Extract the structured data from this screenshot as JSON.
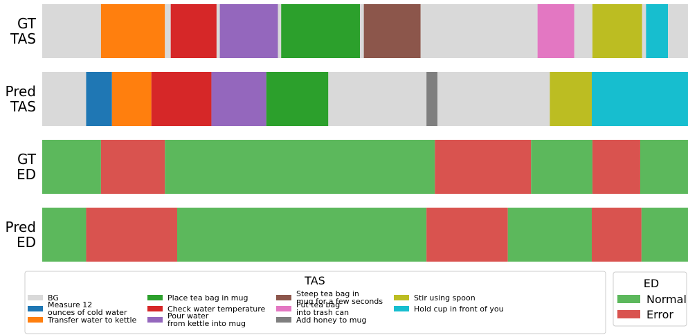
{
  "chart_data": {
    "type": "segmented-timeline",
    "x_range": [
      0,
      100
    ],
    "tas_legend": {
      "title": "TAS",
      "items": [
        {
          "key": "bg",
          "label": [
            "BG"
          ],
          "color": "#d9d9d9"
        },
        {
          "key": "measure",
          "label": [
            "Measure 12",
            "ounces of cold water"
          ],
          "color": "#1f77b4"
        },
        {
          "key": "transfer",
          "label": [
            "Transfer water to kettle"
          ],
          "color": "#ff7f0e"
        },
        {
          "key": "place",
          "label": [
            "Place tea bag in mug"
          ],
          "color": "#2ca02c"
        },
        {
          "key": "check",
          "label": [
            "Check water temperature"
          ],
          "color": "#d62728"
        },
        {
          "key": "pour",
          "label": [
            "Pour water",
            "from kettle into mug"
          ],
          "color": "#9467bd"
        },
        {
          "key": "steep",
          "label": [
            "Steep tea bag in",
            "mug for a few seconds"
          ],
          "color": "#8c564b"
        },
        {
          "key": "trash",
          "label": [
            "Put tea bag",
            "into trash can"
          ],
          "color": "#e377c2"
        },
        {
          "key": "honey",
          "label": [
            "Add honey to mug"
          ],
          "color": "#7f7f7f"
        },
        {
          "key": "stir",
          "label": [
            "Stir using spoon"
          ],
          "color": "#bcbd22"
        },
        {
          "key": "hold",
          "label": [
            "Hold cup in front of you"
          ],
          "color": "#17becf"
        }
      ]
    },
    "ed_legend": {
      "title": "ED",
      "items": [
        {
          "key": "normal",
          "label": "Normal",
          "color": "#5cb85c"
        },
        {
          "key": "error",
          "label": "Error",
          "color": "#d9534f"
        }
      ]
    },
    "rows": [
      {
        "label": [
          "GT",
          "TAS"
        ],
        "segments": [
          {
            "start": 0,
            "end": 9.1,
            "cls": "bg"
          },
          {
            "start": 9.1,
            "end": 19.0,
            "cls": "transfer"
          },
          {
            "start": 19.0,
            "end": 19.9,
            "cls": "bg"
          },
          {
            "start": 19.9,
            "end": 27.0,
            "cls": "check"
          },
          {
            "start": 27.0,
            "end": 27.5,
            "cls": "bg"
          },
          {
            "start": 27.5,
            "end": 36.5,
            "cls": "pour"
          },
          {
            "start": 36.5,
            "end": 37.0,
            "cls": "bg"
          },
          {
            "start": 37.0,
            "end": 49.2,
            "cls": "place"
          },
          {
            "start": 49.2,
            "end": 49.8,
            "cls": "bg"
          },
          {
            "start": 49.8,
            "end": 58.6,
            "cls": "steep"
          },
          {
            "start": 58.6,
            "end": 76.7,
            "cls": "bg"
          },
          {
            "start": 76.7,
            "end": 82.4,
            "cls": "trash"
          },
          {
            "start": 82.4,
            "end": 85.2,
            "cls": "bg"
          },
          {
            "start": 85.2,
            "end": 92.9,
            "cls": "stir"
          },
          {
            "start": 92.9,
            "end": 93.5,
            "cls": "bg"
          },
          {
            "start": 93.5,
            "end": 96.9,
            "cls": "hold"
          },
          {
            "start": 96.9,
            "end": 100,
            "cls": "bg"
          }
        ]
      },
      {
        "label": [
          "Pred",
          "TAS"
        ],
        "segments": [
          {
            "start": 0,
            "end": 6.8,
            "cls": "bg"
          },
          {
            "start": 6.8,
            "end": 10.8,
            "cls": "measure"
          },
          {
            "start": 10.8,
            "end": 16.9,
            "cls": "transfer"
          },
          {
            "start": 16.9,
            "end": 26.2,
            "cls": "check"
          },
          {
            "start": 26.2,
            "end": 34.7,
            "cls": "pour"
          },
          {
            "start": 34.7,
            "end": 44.3,
            "cls": "place"
          },
          {
            "start": 44.3,
            "end": 59.5,
            "cls": "bg"
          },
          {
            "start": 59.5,
            "end": 61.2,
            "cls": "honey"
          },
          {
            "start": 61.2,
            "end": 78.6,
            "cls": "bg"
          },
          {
            "start": 78.6,
            "end": 85.1,
            "cls": "stir"
          },
          {
            "start": 85.1,
            "end": 100,
            "cls": "hold"
          }
        ]
      },
      {
        "label": [
          "GT",
          "ED"
        ],
        "segments": [
          {
            "start": 0,
            "end": 9.1,
            "cls": "normal"
          },
          {
            "start": 9.1,
            "end": 19.0,
            "cls": "error"
          },
          {
            "start": 19.0,
            "end": 60.8,
            "cls": "normal"
          },
          {
            "start": 60.8,
            "end": 75.7,
            "cls": "error"
          },
          {
            "start": 75.7,
            "end": 85.2,
            "cls": "normal"
          },
          {
            "start": 85.2,
            "end": 92.6,
            "cls": "error"
          },
          {
            "start": 92.6,
            "end": 100,
            "cls": "normal"
          }
        ]
      },
      {
        "label": [
          "Pred",
          "ED"
        ],
        "segments": [
          {
            "start": 0,
            "end": 6.8,
            "cls": "normal"
          },
          {
            "start": 6.8,
            "end": 20.9,
            "cls": "error"
          },
          {
            "start": 20.9,
            "end": 59.5,
            "cls": "normal"
          },
          {
            "start": 59.5,
            "end": 72.1,
            "cls": "error"
          },
          {
            "start": 72.1,
            "end": 85.1,
            "cls": "normal"
          },
          {
            "start": 85.1,
            "end": 92.8,
            "cls": "error"
          },
          {
            "start": 92.8,
            "end": 100,
            "cls": "normal"
          }
        ]
      }
    ]
  }
}
